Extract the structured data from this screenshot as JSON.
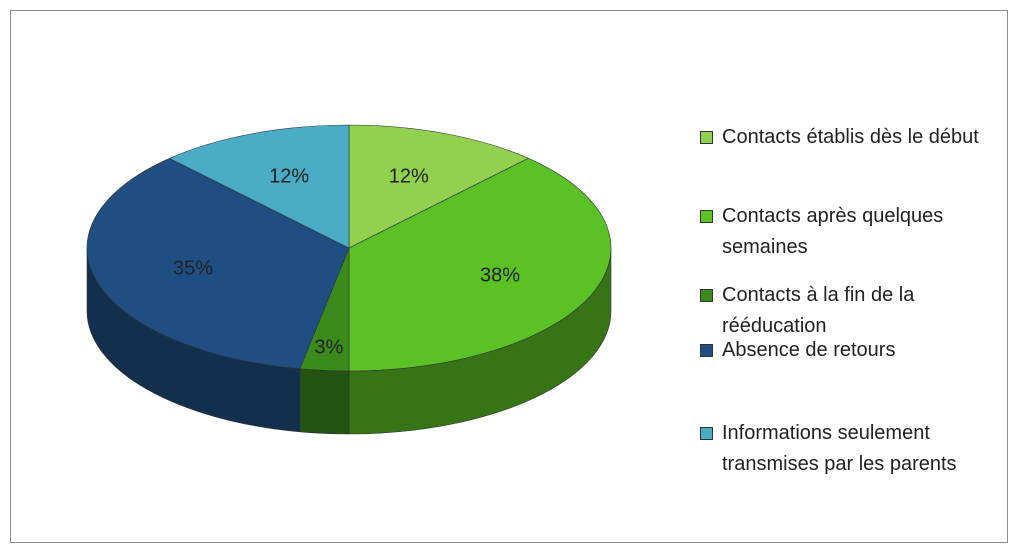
{
  "chart_data": {
    "type": "pie3d",
    "categories": [
      "Contacts établis dès le début",
      "Contacts après quelques semaines",
      "Contacts à la fin de la rééducation",
      "Absence de retours",
      "Informations seulement transmises par les parents"
    ],
    "values": [
      12,
      38,
      3,
      35,
      12
    ],
    "value_labels": [
      "12%",
      "38%",
      "3%",
      "35%",
      "12%"
    ],
    "colors": [
      "#92d050",
      "#5bc225",
      "#3a8a1c",
      "#1f4e82",
      "#4bacc6"
    ],
    "legend": "right"
  }
}
